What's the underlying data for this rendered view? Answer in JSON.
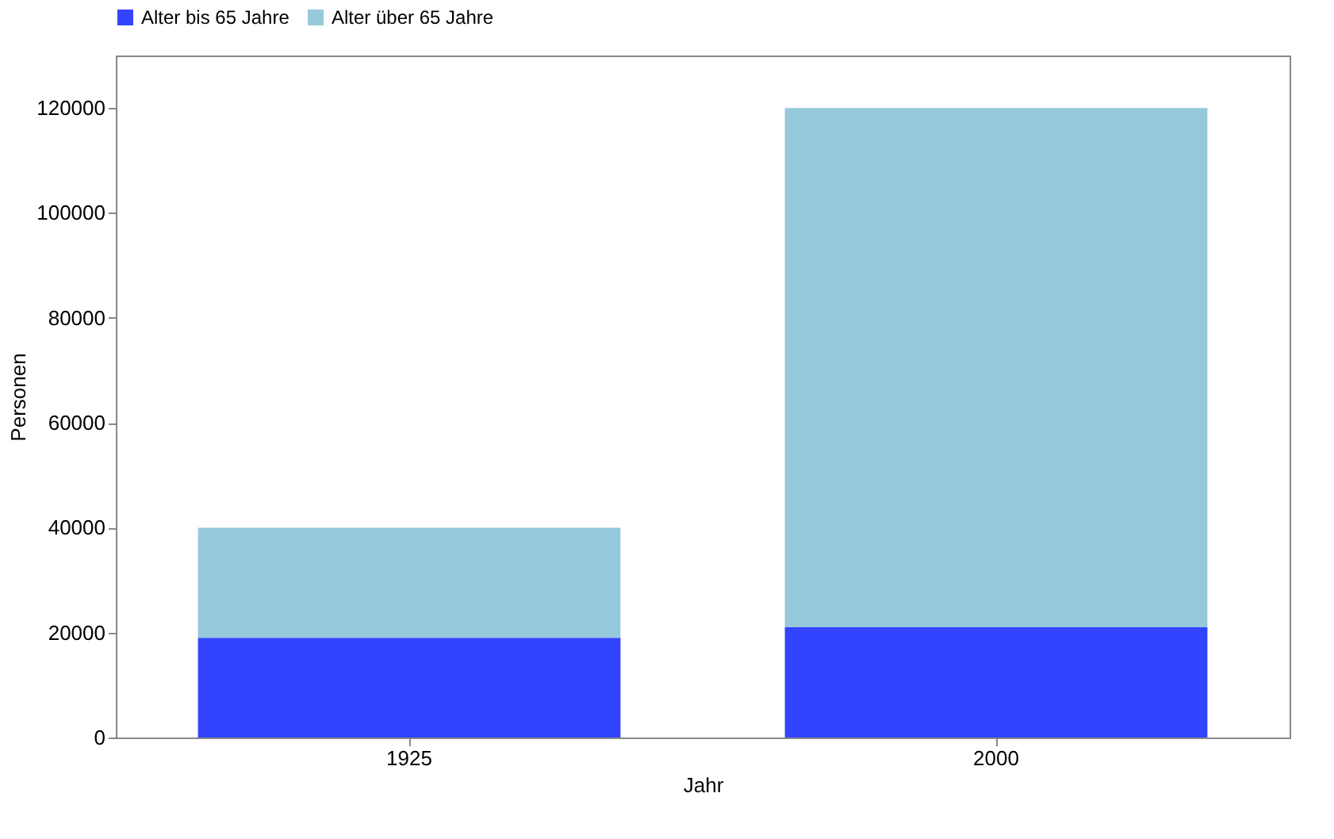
{
  "chart_data": {
    "type": "bar",
    "stacked": true,
    "xlabel": "Jahr",
    "ylabel": "Personen",
    "categories": [
      "1925",
      "2000"
    ],
    "series": [
      {
        "name": "Alter bis 65 Jahre",
        "color": "#3344ff",
        "values": [
          19000,
          21000
        ]
      },
      {
        "name": "Alter über 65 Jahre",
        "color": "#96c8dc",
        "values": [
          21000,
          99000
        ]
      }
    ],
    "ylim": [
      0,
      130000
    ],
    "yticks": [
      0,
      20000,
      40000,
      60000,
      80000,
      100000,
      120000
    ],
    "grid": false,
    "legend": "top left"
  }
}
